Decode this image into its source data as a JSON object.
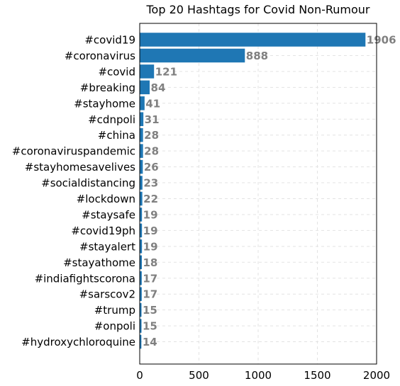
{
  "chart_data": {
    "type": "bar",
    "orientation": "horizontal",
    "title": "Top 20 Hashtags for Covid Non-Rumour",
    "xlabel": "",
    "ylabel": "",
    "categories": [
      "#covid19",
      "#coronavirus",
      "#covid",
      "#breaking",
      "#stayhome",
      "#cdnpoli",
      "#china",
      "#coronaviruspandemic",
      "#stayhomesavelives",
      "#socialdistancing",
      "#lockdown",
      "#staysafe",
      "#covid19ph",
      "#stayalert",
      "#stayathome",
      "#indiafightscorona",
      "#sarscov2",
      "#trump",
      "#onpoli",
      "#hydroxychloroquine"
    ],
    "values": [
      1906,
      888,
      121,
      84,
      41,
      31,
      28,
      28,
      26,
      23,
      22,
      19,
      19,
      19,
      18,
      17,
      17,
      15,
      15,
      14
    ],
    "data_labels": [
      "1906",
      "888",
      "121",
      "84",
      "41",
      "31",
      "28",
      "28",
      "26",
      "23",
      "22",
      "19",
      "19",
      "19",
      "18",
      "17",
      "17",
      "15",
      "15",
      "14"
    ],
    "xlim": [
      0,
      2000
    ],
    "xticks": [
      0,
      500,
      1000,
      1500,
      2000
    ],
    "xtick_labels": [
      "0",
      "500",
      "1000",
      "1500",
      "2000"
    ],
    "grid": true,
    "legend": "none",
    "bar_color": "#1f77b4",
    "label_color": "#808080"
  }
}
